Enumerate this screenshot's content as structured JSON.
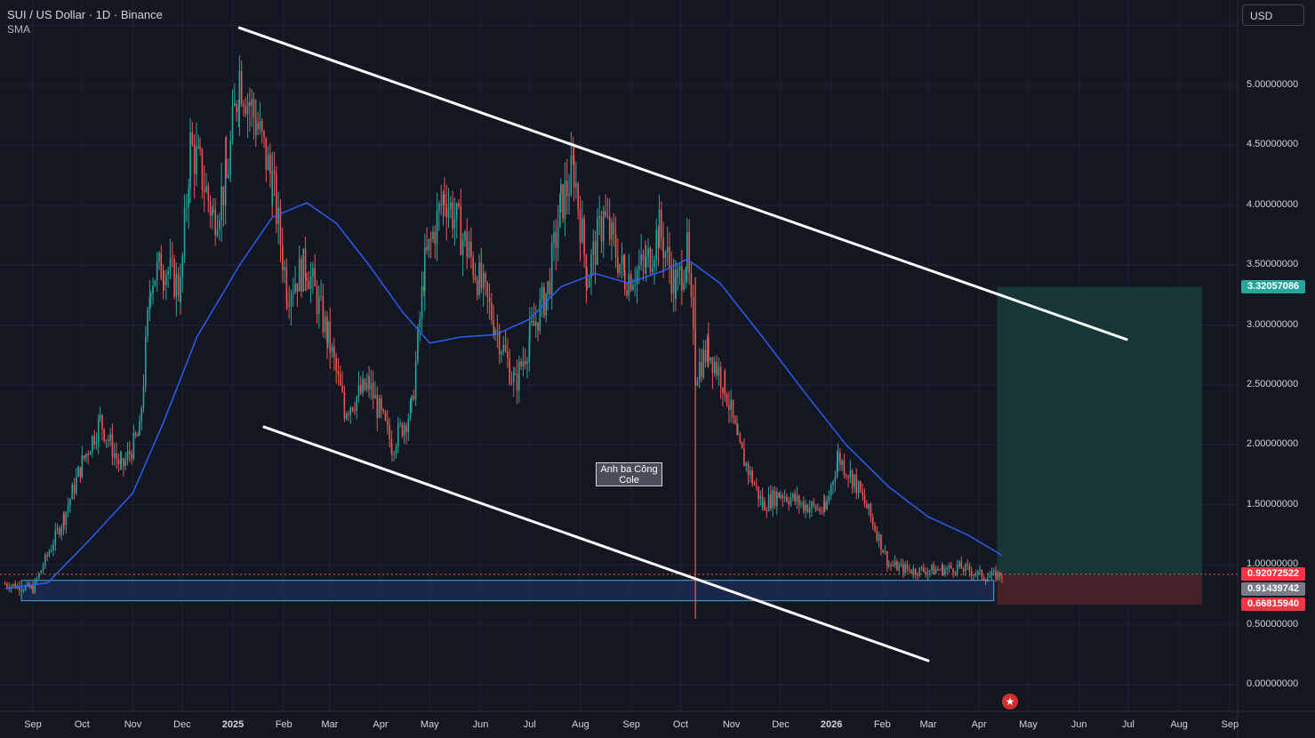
{
  "header": {
    "title": "SUI / US Dollar · 1D · Binance",
    "indicator": "SMA"
  },
  "currency_button": "USD",
  "annotation": {
    "line1": "Anh ba Công",
    "line2": "Cole"
  },
  "price_tags": {
    "target": {
      "value": "3.32057086",
      "color": "#26a69a"
    },
    "current": {
      "value": "0.92072522",
      "color": "#f23645"
    },
    "entry": {
      "value": "0.91439742",
      "color": "#787b86"
    },
    "stop": {
      "value": "0.66815940",
      "color": "#f23645"
    }
  },
  "y_axis": {
    "labels": [
      "5.00000000",
      "4.50000000",
      "4.00000000",
      "3.50000000",
      "3.00000000",
      "2.50000000",
      "2.00000000",
      "1.50000000",
      "1.00000000",
      "0.50000000",
      "0.00000000"
    ]
  },
  "x_axis": {
    "labels": [
      {
        "text": "Sep",
        "bold": false
      },
      {
        "text": "Oct",
        "bold": false
      },
      {
        "text": "Nov",
        "bold": false
      },
      {
        "text": "Dec",
        "bold": false
      },
      {
        "text": "2025",
        "bold": true
      },
      {
        "text": "Feb",
        "bold": false
      },
      {
        "text": "Mar",
        "bold": false
      },
      {
        "text": "Apr",
        "bold": false
      },
      {
        "text": "May",
        "bold": false
      },
      {
        "text": "Jun",
        "bold": false
      },
      {
        "text": "Jul",
        "bold": false
      },
      {
        "text": "Aug",
        "bold": false
      },
      {
        "text": "Sep",
        "bold": false
      },
      {
        "text": "Oct",
        "bold": false
      },
      {
        "text": "Nov",
        "bold": false
      },
      {
        "text": "Dec",
        "bold": false
      },
      {
        "text": "2026",
        "bold": true
      },
      {
        "text": "Feb",
        "bold": false
      },
      {
        "text": "Mar",
        "bold": false
      },
      {
        "text": "Apr",
        "bold": false
      },
      {
        "text": "May",
        "bold": false
      },
      {
        "text": "Jun",
        "bold": false
      },
      {
        "text": "Jul",
        "bold": false
      },
      {
        "text": "Aug",
        "bold": false
      },
      {
        "text": "Sep",
        "bold": false
      }
    ]
  },
  "colors": {
    "background": "#141722",
    "grid": "#1f2330",
    "up": "#26a69a",
    "down": "#ef5350",
    "sma": "#2962ff",
    "trendline": "#ffffff",
    "zone_fill": "#1a2a52",
    "zone_border": "#4fc3f7",
    "profit_zone": "#163a3a",
    "loss_zone": "#4a2228"
  },
  "chart_data": {
    "type": "candlestick",
    "symbol": "SUI / US Dollar",
    "interval": "1D",
    "exchange": "Binance",
    "ylim": [
      0,
      5.5
    ],
    "price_path": [
      [
        "2024-08-15",
        0.84
      ],
      [
        "2024-09-01",
        0.8
      ],
      [
        "2024-09-20",
        1.4
      ],
      [
        "2024-10-01",
        1.85
      ],
      [
        "2024-10-12",
        2.2
      ],
      [
        "2024-10-25",
        1.8
      ],
      [
        "2024-11-05",
        2.1
      ],
      [
        "2024-11-12",
        3.4
      ],
      [
        "2024-11-20",
        3.5
      ],
      [
        "2024-11-30",
        3.3
      ],
      [
        "2024-12-06",
        4.5
      ],
      [
        "2024-12-12",
        4.3
      ],
      [
        "2024-12-20",
        3.9
      ],
      [
        "2024-12-28",
        4.2
      ],
      [
        "2025-01-05",
        5.1
      ],
      [
        "2025-01-15",
        4.7
      ],
      [
        "2025-01-25",
        4.2
      ],
      [
        "2025-02-03",
        3.3
      ],
      [
        "2025-02-15",
        3.5
      ],
      [
        "2025-02-28",
        2.9
      ],
      [
        "2025-03-10",
        2.3
      ],
      [
        "2025-03-25",
        2.5
      ],
      [
        "2025-04-08",
        2.0
      ],
      [
        "2025-04-20",
        2.3
      ],
      [
        "2025-04-28",
        3.5
      ],
      [
        "2025-05-10",
        4.1
      ],
      [
        "2025-05-25",
        3.6
      ],
      [
        "2025-06-10",
        3.0
      ],
      [
        "2025-06-22",
        2.5
      ],
      [
        "2025-07-01",
        2.9
      ],
      [
        "2025-07-12",
        3.3
      ],
      [
        "2025-07-20",
        4.0
      ],
      [
        "2025-07-28",
        4.3
      ],
      [
        "2025-08-05",
        3.4
      ],
      [
        "2025-08-15",
        3.9
      ],
      [
        "2025-08-28",
        3.4
      ],
      [
        "2025-09-10",
        3.5
      ],
      [
        "2025-09-18",
        3.8
      ],
      [
        "2025-09-28",
        3.3
      ],
      [
        "2025-10-05",
        3.6
      ],
      [
        "2025-10-10",
        2.6
      ],
      [
        "2025-10-18",
        2.8
      ],
      [
        "2025-10-28",
        2.5
      ],
      [
        "2025-11-05",
        2.0
      ],
      [
        "2025-11-20",
        1.5
      ],
      [
        "2025-12-01",
        1.6
      ],
      [
        "2025-12-15",
        1.5
      ],
      [
        "2025-12-28",
        1.45
      ],
      [
        "2026-01-05",
        1.9
      ],
      [
        "2026-01-15",
        1.7
      ],
      [
        "2026-01-25",
        1.4
      ],
      [
        "2026-02-05",
        1.0
      ],
      [
        "2026-02-20",
        0.95
      ],
      [
        "2026-03-10",
        0.96
      ],
      [
        "2026-03-20",
        0.98
      ],
      [
        "2026-04-05",
        0.9
      ],
      [
        "2026-04-15",
        0.92
      ]
    ],
    "sma": [
      [
        "2024-08-15",
        0.8
      ],
      [
        "2024-09-10",
        0.85
      ],
      [
        "2024-10-05",
        1.2
      ],
      [
        "2024-11-01",
        1.6
      ],
      [
        "2024-11-20",
        2.2
      ],
      [
        "2024-12-10",
        2.9
      ],
      [
        "2025-01-05",
        3.5
      ],
      [
        "2025-01-25",
        3.9
      ],
      [
        "2025-02-15",
        4.02
      ],
      [
        "2025-03-05",
        3.85
      ],
      [
        "2025-03-25",
        3.5
      ],
      [
        "2025-04-15",
        3.1
      ],
      [
        "2025-05-01",
        2.85
      ],
      [
        "2025-05-20",
        2.9
      ],
      [
        "2025-06-10",
        2.92
      ],
      [
        "2025-07-01",
        3.05
      ],
      [
        "2025-07-20",
        3.32
      ],
      [
        "2025-08-10",
        3.43
      ],
      [
        "2025-08-30",
        3.35
      ],
      [
        "2025-09-20",
        3.45
      ],
      [
        "2025-10-05",
        3.55
      ],
      [
        "2025-10-25",
        3.35
      ],
      [
        "2025-11-20",
        2.9
      ],
      [
        "2025-12-15",
        2.45
      ],
      [
        "2026-01-10",
        2.0
      ],
      [
        "2026-02-05",
        1.65
      ],
      [
        "2026-03-01",
        1.4
      ],
      [
        "2026-03-25",
        1.25
      ],
      [
        "2026-04-15",
        1.08
      ]
    ],
    "trendlines": [
      {
        "from": [
          "2025-01-05",
          5.48
        ],
        "to": [
          "2026-06-30",
          2.88
        ]
      },
      {
        "from": [
          "2025-01-20",
          2.15
        ],
        "to": [
          "2026-03-01",
          0.2
        ]
      }
    ],
    "support_zone": {
      "from": "2024-08-25",
      "to": "2026-04-10",
      "low": 0.7,
      "high": 0.87
    },
    "position": {
      "start": "2026-04-12",
      "end": "2026-08-15",
      "target": 3.32057086,
      "entry": 0.91439742,
      "stop": 0.6681594,
      "current": 0.92072522
    },
    "wick_event": {
      "date": "2025-10-10",
      "high": 3.4,
      "low": 0.55
    }
  }
}
